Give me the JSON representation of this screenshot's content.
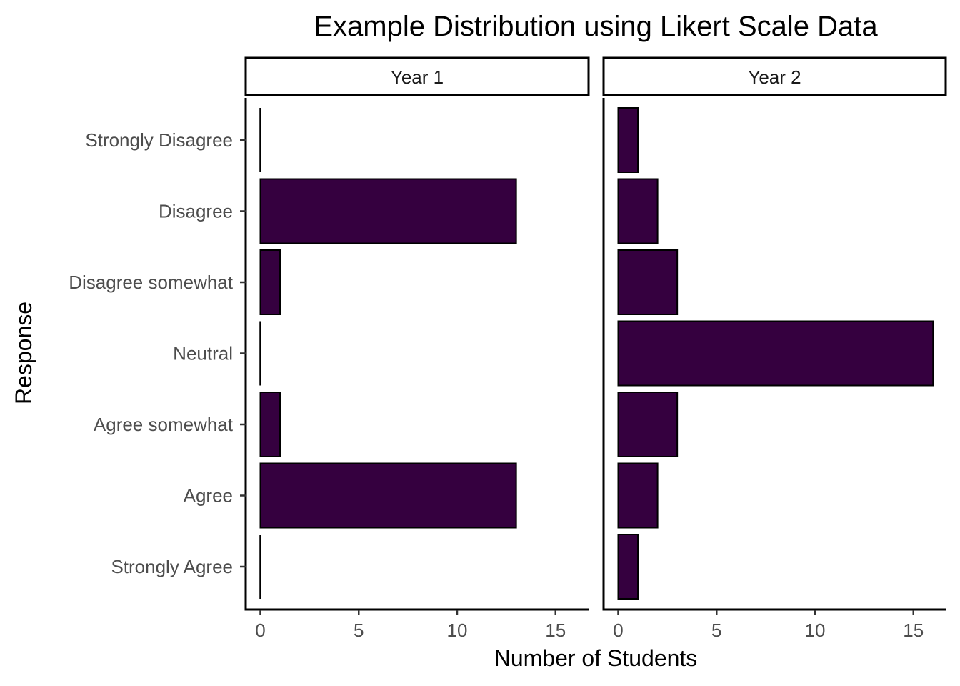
{
  "chart_data": {
    "type": "bar",
    "orientation": "horizontal",
    "title": "Example Distribution using Likert Scale Data",
    "xlabel": "Number of Students",
    "ylabel": "Response",
    "categories": [
      "Strongly Disagree",
      "Disagree",
      "Disagree somewhat",
      "Neutral",
      "Agree somewhat",
      "Agree",
      "Strongly Agree"
    ],
    "xlim": [
      0,
      17
    ],
    "xticks": [
      0,
      5,
      10,
      15
    ],
    "grid": false,
    "legend": "none",
    "bar_color": "#35003f",
    "facets": [
      {
        "label": "Year 1",
        "values": [
          0,
          13,
          1,
          0,
          1,
          13,
          0
        ]
      },
      {
        "label": "Year 2",
        "values": [
          1,
          2,
          3,
          16,
          3,
          2,
          1
        ]
      }
    ]
  }
}
